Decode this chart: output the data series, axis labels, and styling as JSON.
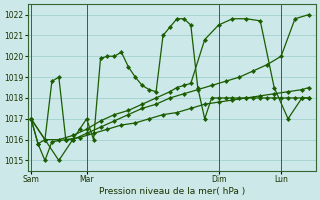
{
  "background_color": "#cce8e8",
  "grid_color": "#99cccc",
  "line_color": "#1a5c00",
  "xlabel": "Pression niveau de la mer( hPa )",
  "ylim": [
    1014.5,
    1022.5
  ],
  "yticks": [
    1015,
    1016,
    1017,
    1018,
    1019,
    1020,
    1021,
    1022
  ],
  "xtick_labels": [
    "Sam",
    "Mar",
    "Dim",
    "Lun"
  ],
  "series": [
    {
      "x": [
        0,
        1,
        2,
        3,
        5,
        7,
        9,
        11,
        13,
        15,
        17,
        19,
        21,
        23,
        25,
        27,
        29,
        31,
        33,
        35,
        37,
        39,
        40
      ],
      "y": [
        1017.0,
        1015.8,
        1015.0,
        1015.9,
        1016.0,
        1016.1,
        1016.3,
        1016.5,
        1016.7,
        1016.8,
        1017.0,
        1017.2,
        1017.3,
        1017.5,
        1017.7,
        1017.8,
        1017.9,
        1018.0,
        1018.1,
        1018.2,
        1018.3,
        1018.4,
        1018.5
      ]
    },
    {
      "x": [
        0,
        1,
        2,
        3,
        4,
        5,
        6,
        7,
        8,
        9,
        10,
        11,
        12,
        13,
        14,
        15,
        16,
        17,
        18,
        19,
        20,
        21,
        22,
        23,
        24,
        25,
        26,
        27,
        28,
        29,
        30,
        31,
        32,
        33,
        34,
        35,
        36,
        37,
        38,
        39,
        40
      ],
      "y": [
        1017.0,
        1015.8,
        1016.0,
        1018.8,
        1019.0,
        1016.0,
        1016.0,
        1016.5,
        1017.0,
        1016.0,
        1019.9,
        1020.0,
        1020.0,
        1020.2,
        1019.5,
        1019.0,
        1018.6,
        1018.4,
        1018.3,
        1021.0,
        1021.4,
        1021.8,
        1021.8,
        1021.5,
        1018.5,
        1017.0,
        1018.0,
        1018.0,
        1018.0,
        1018.0,
        1018.0,
        1018.0,
        1018.0,
        1018.0,
        1018.0,
        1018.0,
        1018.0,
        1018.0,
        1018.0,
        1018.0,
        1018.0
      ]
    },
    {
      "x": [
        0,
        2,
        4,
        6,
        8,
        10,
        12,
        14,
        16,
        18,
        20,
        21,
        22,
        23,
        25,
        27,
        29,
        31,
        33,
        35,
        37,
        39,
        40
      ],
      "y": [
        1017.0,
        1016.0,
        1016.0,
        1016.2,
        1016.5,
        1016.9,
        1017.2,
        1017.4,
        1017.7,
        1018.0,
        1018.3,
        1018.5,
        1018.6,
        1018.7,
        1020.8,
        1021.5,
        1021.8,
        1021.8,
        1021.7,
        1018.5,
        1017.0,
        1018.0,
        1018.0
      ]
    },
    {
      "x": [
        0,
        2,
        4,
        6,
        8,
        10,
        12,
        14,
        16,
        18,
        20,
        22,
        24,
        26,
        28,
        30,
        32,
        34,
        36,
        38,
        40
      ],
      "y": [
        1017.0,
        1016.0,
        1015.0,
        1016.0,
        1016.3,
        1016.6,
        1016.9,
        1017.2,
        1017.5,
        1017.7,
        1018.0,
        1018.2,
        1018.4,
        1018.6,
        1018.8,
        1019.0,
        1019.3,
        1019.6,
        1020.0,
        1021.8,
        1022.0
      ]
    }
  ],
  "vlines": [
    0,
    8,
    27,
    36
  ],
  "xtick_x": [
    0,
    8,
    27,
    36
  ]
}
